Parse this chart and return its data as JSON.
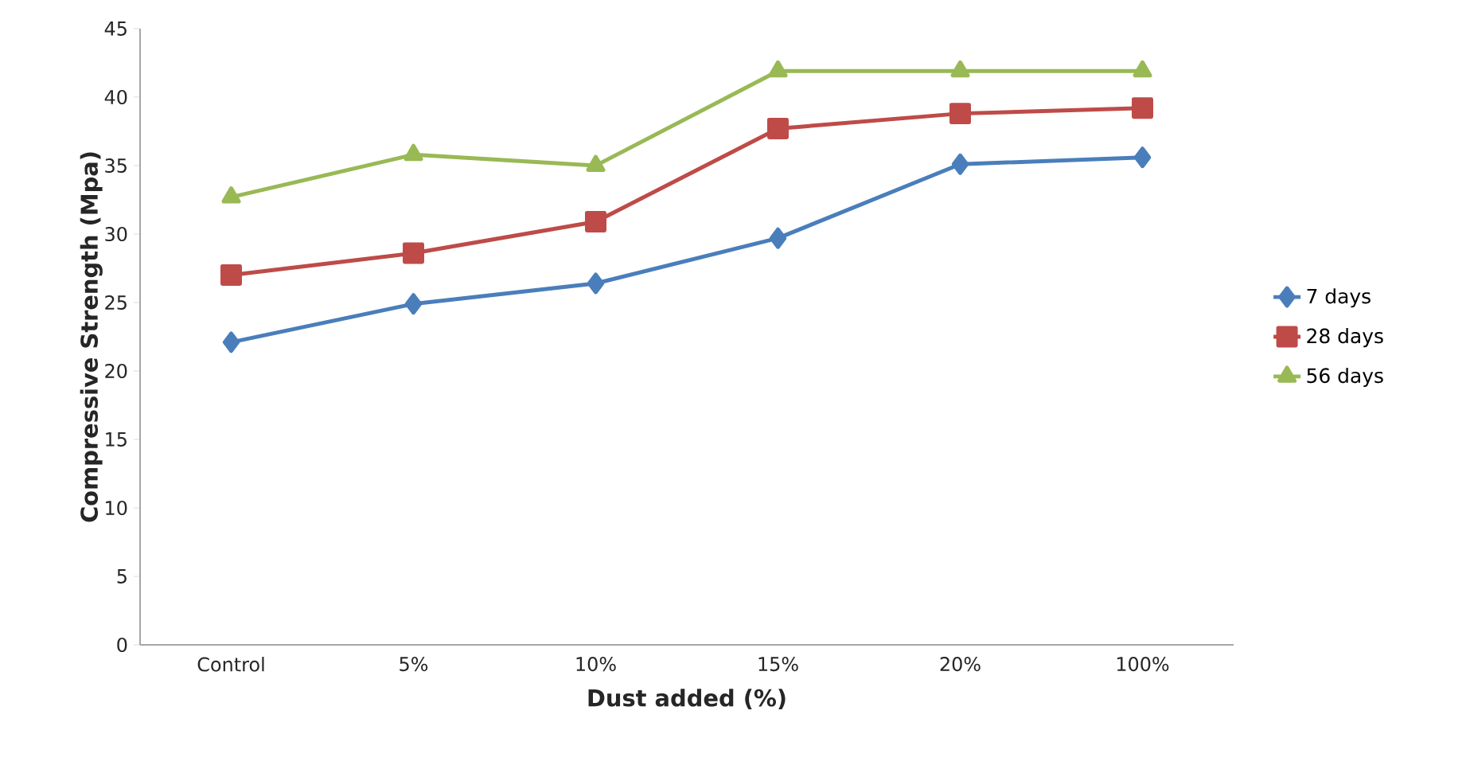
{
  "chart_data": {
    "type": "line",
    "xlabel": "Dust added (%)",
    "ylabel": "Compressive Strength (Mpa)",
    "categories": [
      "Control",
      "5%",
      "10%",
      "15%",
      "20%",
      "100%"
    ],
    "series": [
      {
        "name": "7 days",
        "color": "#4a7ebb",
        "marker": "diamond",
        "values": [
          22.1,
          24.9,
          26.4,
          29.7,
          35.1,
          35.6
        ]
      },
      {
        "name": "28 days",
        "color": "#be4b48",
        "marker": "square",
        "values": [
          27.0,
          28.6,
          30.9,
          37.7,
          38.8,
          39.2
        ]
      },
      {
        "name": "56 days",
        "color": "#98b954",
        "marker": "triangle",
        "values": [
          32.7,
          35.8,
          35.0,
          41.9,
          41.9,
          41.9
        ]
      }
    ],
    "ylim": [
      0,
      45
    ],
    "yticks": [
      0,
      5,
      10,
      15,
      20,
      25,
      30,
      35,
      40,
      45
    ],
    "grid": false,
    "legend": "right"
  }
}
